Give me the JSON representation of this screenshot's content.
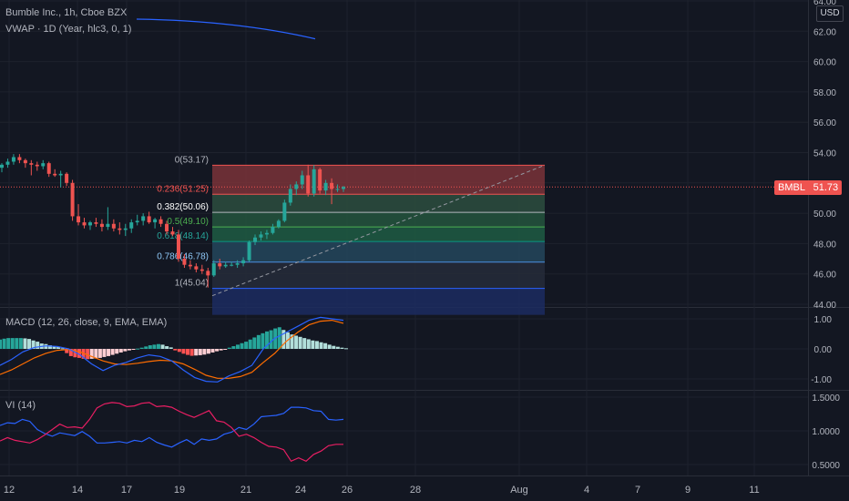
{
  "header": {
    "symbol_line": "Bumble Inc., 1h, Cboe BZX",
    "vwap_line": "VWAP · 1D (Year, hlc3, 0, 1)",
    "currency": "USD"
  },
  "price_badge": {
    "symbol": "BMBL",
    "value": "51.73"
  },
  "colors": {
    "background": "#131722",
    "grid": "#1e222d",
    "axis_text": "#b2b5be",
    "up": "#26a69a",
    "down": "#ef5350",
    "vwap": "#2962ff",
    "macd_line": "#2962ff",
    "signal_line": "#ff6d00",
    "vi_plus": "#2962ff",
    "vi_minus": "#e91e63"
  },
  "chart_data": [
    {
      "type": "candlestick",
      "name": "price",
      "ylim": [
        44,
        64
      ],
      "y_ticks": [
        "44.00",
        "46.00",
        "48.00",
        "50.00",
        "52.00",
        "54.00",
        "56.00",
        "58.00",
        "60.00",
        "62.00",
        "64.00"
      ],
      "x_ticks": [
        "12",
        "14",
        "17",
        "19",
        "21",
        "24",
        "26",
        "28",
        "Aug",
        "4",
        "7",
        "9",
        "11"
      ],
      "last_price": 51.73,
      "vwap": {
        "start": 62.8,
        "end": 61.5
      },
      "fib": {
        "levels": [
          {
            "ratio": "0",
            "price": 53.17,
            "label": "0(53.17)"
          },
          {
            "ratio": "0.236",
            "price": 51.25,
            "label": "0.236(51.25)"
          },
          {
            "ratio": "0.382",
            "price": 50.06,
            "label": "0.382(50.06)"
          },
          {
            "ratio": "0.5",
            "price": 49.1,
            "label": "0.5(49.10)"
          },
          {
            "ratio": "0.618",
            "price": 48.14,
            "label": "0.618(48.14)"
          },
          {
            "ratio": "0.786",
            "price": 46.78,
            "label": "0.786(46.78)"
          },
          {
            "ratio": "1",
            "price": 45.04,
            "label": "1(45.04)"
          }
        ],
        "below_price": 43.3,
        "start_price": 45.04,
        "end_price": 53.17,
        "fills": [
          "#7a3238",
          "#2d4d3e",
          "#25553d",
          "#1f5c43",
          "#24475c",
          "#262c3a",
          "#1c2c60"
        ],
        "line_colors": [
          "#ef5350",
          "#ef5350",
          "#b2b5be",
          "#4caf50",
          "#089981",
          "#4a90e2",
          "#2962ff"
        ],
        "label_colors": [
          "#b2b5be",
          "#ef5350",
          "#ffffff",
          "#4caf50",
          "#26a69a",
          "#90caf9",
          "#b2b5be"
        ]
      },
      "candles": [
        [
          53.0,
          53.3,
          52.7,
          53.2
        ],
        [
          53.2,
          53.6,
          53.0,
          53.4
        ],
        [
          53.4,
          53.9,
          53.2,
          53.7
        ],
        [
          53.7,
          53.9,
          53.3,
          53.5
        ],
        [
          53.5,
          53.6,
          53.0,
          53.3
        ],
        [
          53.3,
          53.5,
          52.5,
          53.2
        ],
        [
          53.2,
          53.4,
          52.8,
          53.1
        ],
        [
          53.1,
          53.5,
          52.9,
          53.3
        ],
        [
          53.3,
          53.4,
          52.4,
          52.6
        ],
        [
          52.6,
          52.9,
          52.4,
          52.5
        ],
        [
          52.5,
          52.8,
          51.7,
          52.6
        ],
        [
          52.6,
          52.7,
          51.8,
          52.0
        ],
        [
          52.0,
          52.2,
          49.5,
          49.8
        ],
        [
          49.8,
          50.6,
          49.2,
          49.4
        ],
        [
          49.4,
          49.7,
          49.0,
          49.2
        ],
        [
          49.2,
          49.5,
          48.9,
          49.4
        ],
        [
          49.4,
          49.7,
          49.1,
          49.3
        ],
        [
          49.3,
          49.6,
          48.8,
          49.1
        ],
        [
          49.1,
          50.4,
          48.9,
          49.3
        ],
        [
          49.3,
          49.6,
          48.8,
          49.0
        ],
        [
          49.0,
          49.4,
          48.6,
          48.9
        ],
        [
          48.9,
          49.3,
          48.5,
          49.0
        ],
        [
          49.0,
          49.6,
          48.7,
          49.4
        ],
        [
          49.4,
          49.9,
          49.2,
          49.5
        ],
        [
          49.5,
          50.0,
          49.2,
          49.8
        ],
        [
          49.8,
          50.1,
          49.3,
          49.4
        ],
        [
          49.4,
          49.7,
          49.0,
          49.6
        ],
        [
          49.6,
          49.8,
          49.1,
          49.3
        ],
        [
          49.3,
          49.5,
          48.6,
          48.8
        ],
        [
          48.8,
          49.1,
          48.5,
          48.6
        ],
        [
          48.6,
          48.9,
          46.8,
          47.0
        ],
        [
          47.0,
          47.3,
          46.4,
          46.6
        ],
        [
          46.6,
          46.9,
          46.3,
          46.5
        ],
        [
          46.5,
          46.7,
          46.1,
          46.3
        ],
        [
          46.3,
          46.6,
          46.0,
          46.2
        ],
        [
          46.2,
          46.4,
          45.1,
          45.9
        ],
        [
          45.9,
          46.9,
          45.8,
          46.7
        ],
        [
          46.7,
          47.0,
          46.3,
          46.5
        ],
        [
          46.5,
          46.8,
          46.4,
          46.6
        ],
        [
          46.6,
          46.8,
          46.5,
          46.6
        ],
        [
          46.6,
          46.9,
          46.4,
          46.7
        ],
        [
          46.7,
          47.1,
          46.5,
          46.9
        ],
        [
          46.9,
          48.2,
          46.8,
          48.1
        ],
        [
          48.1,
          48.6,
          47.9,
          48.4
        ],
        [
          48.4,
          48.8,
          48.2,
          48.6
        ],
        [
          48.6,
          48.9,
          48.3,
          48.7
        ],
        [
          48.7,
          49.3,
          48.6,
          49.1
        ],
        [
          49.1,
          49.6,
          49.0,
          49.5
        ],
        [
          49.5,
          50.9,
          49.4,
          50.7
        ],
        [
          50.7,
          51.9,
          50.5,
          51.6
        ],
        [
          51.6,
          52.1,
          51.2,
          51.9
        ],
        [
          51.9,
          52.8,
          51.6,
          52.5
        ],
        [
          52.5,
          53.2,
          51.1,
          51.3
        ],
        [
          51.3,
          53.17,
          51.1,
          52.9
        ],
        [
          52.9,
          53.0,
          51.3,
          51.5
        ],
        [
          51.5,
          52.2,
          51.2,
          52.0
        ],
        [
          52.0,
          52.3,
          50.6,
          51.6
        ],
        [
          51.6,
          51.9,
          51.4,
          51.6
        ],
        [
          51.6,
          51.8,
          51.4,
          51.73
        ]
      ]
    },
    {
      "type": "macd",
      "name": "MACD (12, 26, close, 9, EMA, EMA)",
      "ylim": [
        -1.45,
        1.25
      ],
      "y_ticks": [
        "1.00",
        "0.00",
        "-1.00"
      ],
      "hist": [
        0.31,
        0.34,
        0.36,
        0.36,
        0.36,
        0.36,
        0.35,
        0.33,
        0.28,
        0.24,
        0.18,
        0.16,
        0.12,
        0.09,
        0.06,
        0.02,
        -0.14,
        -0.24,
        -0.28,
        -0.3,
        -0.33,
        -0.34,
        -0.33,
        -0.32,
        -0.3,
        -0.27,
        -0.24,
        -0.2,
        -0.16,
        -0.12,
        -0.08,
        -0.05,
        -0.03,
        0.01,
        0.04,
        0.08,
        0.12,
        0.14,
        0.16,
        0.14,
        0.09,
        0.05,
        -0.05,
        -0.1,
        -0.16,
        -0.2,
        -0.23,
        -0.22,
        -0.21,
        -0.19,
        -0.16,
        -0.12,
        -0.08,
        -0.05,
        -0.03,
        0.04,
        0.09,
        0.14,
        0.19,
        0.24,
        0.31,
        0.38,
        0.46,
        0.52,
        0.58,
        0.62,
        0.68,
        0.72,
        0.63,
        0.55,
        0.48,
        0.44,
        0.4,
        0.36,
        0.32,
        0.28,
        0.26,
        0.22,
        0.19,
        0.14,
        0.1,
        0.07,
        0.04,
        0.02
      ],
      "macd": [
        -0.55,
        -0.35,
        -0.1,
        0.05,
        0.1,
        0.08,
        0.0,
        -0.2,
        -0.5,
        -0.72,
        -0.55,
        -0.45,
        -0.3,
        -0.2,
        -0.25,
        -0.4,
        -0.7,
        -0.95,
        -1.08,
        -1.1,
        -0.9,
        -0.75,
        -0.55,
        0.0,
        0.35,
        0.55,
        0.75,
        0.95,
        1.05,
        1.0,
        0.95
      ],
      "signal": [
        -0.85,
        -0.7,
        -0.5,
        -0.3,
        -0.15,
        -0.05,
        -0.02,
        -0.1,
        -0.25,
        -0.4,
        -0.5,
        -0.52,
        -0.48,
        -0.42,
        -0.38,
        -0.4,
        -0.5,
        -0.68,
        -0.88,
        -0.98,
        -0.98,
        -0.92,
        -0.78,
        -0.45,
        -0.15,
        0.25,
        0.55,
        0.8,
        0.92,
        0.95,
        0.85
      ]
    },
    {
      "type": "vortex",
      "name": "VI (14)",
      "ylim": [
        0.35,
        1.55
      ],
      "y_ticks": [
        "1.5000",
        "1.0000",
        "0.5000"
      ],
      "vi_plus": [
        1.08,
        1.12,
        1.11,
        1.17,
        1.14,
        1.02,
        0.96,
        0.92,
        0.97,
        0.95,
        0.93,
        0.99,
        0.92,
        0.82,
        0.82,
        0.83,
        0.84,
        0.82,
        0.86,
        0.84,
        0.9,
        0.83,
        0.79,
        0.76,
        0.82,
        0.87,
        0.8,
        0.88,
        0.86,
        0.88,
        0.95,
        0.98,
        1.05,
        1.02,
        1.1,
        1.21,
        1.22,
        1.23,
        1.26,
        1.35,
        1.35,
        1.34,
        1.3,
        1.29,
        1.17,
        1.16,
        1.17
      ],
      "vi_minus": [
        0.85,
        0.9,
        0.86,
        0.84,
        0.82,
        0.87,
        0.94,
        1.02,
        1.1,
        1.05,
        1.06,
        1.04,
        1.17,
        1.34,
        1.4,
        1.42,
        1.41,
        1.36,
        1.37,
        1.41,
        1.42,
        1.36,
        1.37,
        1.35,
        1.29,
        1.24,
        1.2,
        1.25,
        1.3,
        1.15,
        1.13,
        1.05,
        0.92,
        0.95,
        0.9,
        0.83,
        0.77,
        0.76,
        0.72,
        0.55,
        0.6,
        0.55,
        0.65,
        0.7,
        0.78,
        0.8,
        0.8
      ]
    }
  ]
}
